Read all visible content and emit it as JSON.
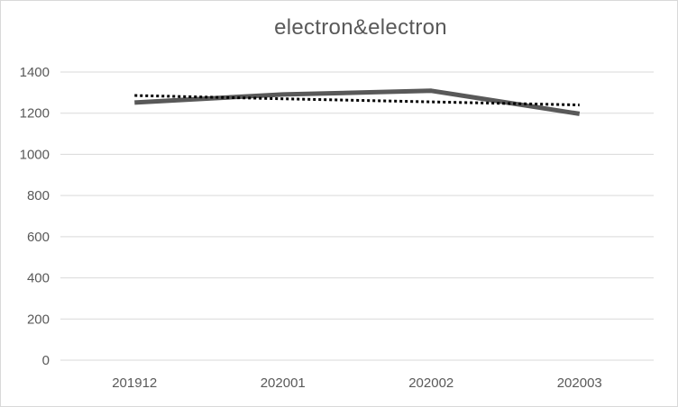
{
  "chart_data": {
    "type": "line",
    "title": "electron&electron",
    "xlabel": "",
    "ylabel": "",
    "categories": [
      "201912",
      "202001",
      "202002",
      "202003"
    ],
    "series": [
      {
        "values": [
          1252,
          1291,
          1309,
          1197
        ],
        "color": "#595959",
        "style": "solid"
      },
      {
        "values": [
          1286,
          1270,
          1255,
          1240
        ],
        "color": "#000000",
        "style": "dotted",
        "trendline": true
      }
    ],
    "ylim": [
      0,
      1400
    ],
    "yticks": [
      0,
      200,
      400,
      600,
      800,
      1000,
      1200,
      1400
    ],
    "grid": true,
    "gridColor": "#d9d9d9",
    "legend": "none"
  }
}
